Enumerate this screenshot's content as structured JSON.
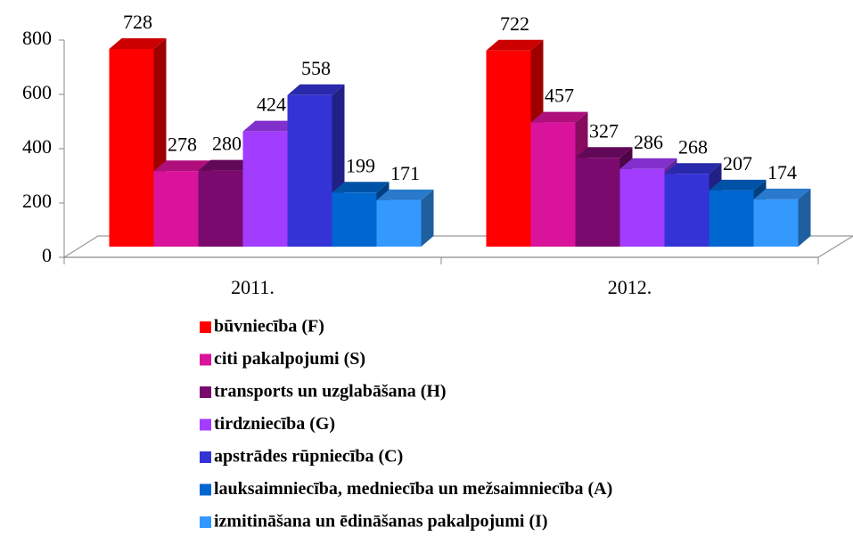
{
  "chart_data": {
    "type": "bar3d",
    "categories": [
      "2011.",
      "2012."
    ],
    "series": [
      {
        "name": "būvniecība (F)",
        "color": "#ff0000",
        "values": [
          728,
          722
        ]
      },
      {
        "name": "citi pakalpojumi (S)",
        "color": "#d9139b",
        "values": [
          278,
          457
        ]
      },
      {
        "name": "transports un uzglabāšana (H)",
        "color": "#7a0a6e",
        "values": [
          280,
          327
        ]
      },
      {
        "name": "tirdzniecība (G)",
        "color": "#a23cff",
        "values": [
          424,
          286
        ]
      },
      {
        "name": "apstrādes rūpniecība (C)",
        "color": "#3333d6",
        "values": [
          558,
          268
        ]
      },
      {
        "name": "lauksaimniecība, medniecība un mežsaimniecība (A)",
        "color": "#0066d0",
        "values": [
          199,
          207
        ]
      },
      {
        "name": "izmitināšana un ēdināšanas pakalpojumi (I)",
        "color": "#3399ff",
        "values": [
          171,
          174
        ]
      }
    ],
    "ylim": [
      0,
      800
    ],
    "yticks": [
      0,
      200,
      400,
      600,
      800
    ],
    "data_labels": true
  }
}
